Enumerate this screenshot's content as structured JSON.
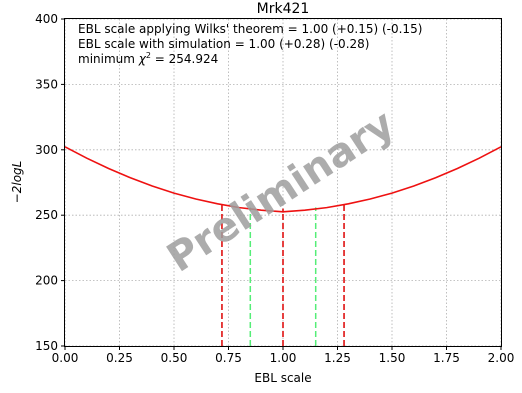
{
  "chart_data": {
    "type": "line",
    "title": "Mrk421",
    "xlabel": "EBL scale",
    "ylabel": "−2logL",
    "xlim": [
      0.0,
      2.0
    ],
    "ylim": [
      150,
      400
    ],
    "xticks": [
      0.0,
      0.25,
      0.5,
      0.75,
      1.0,
      1.25,
      1.5,
      1.75,
      2.0
    ],
    "xtick_labels": [
      "0.00",
      "0.25",
      "0.50",
      "0.75",
      "1.00",
      "1.25",
      "1.50",
      "1.75",
      "2.00"
    ],
    "yticks": [
      150,
      200,
      250,
      300,
      350,
      400
    ],
    "ytick_labels": [
      "150",
      "200",
      "250",
      "300",
      "350",
      "400"
    ],
    "grid": true,
    "series": [
      {
        "color": "#ee1111",
        "x": [
          0.0,
          0.1,
          0.2,
          0.3,
          0.4,
          0.5,
          0.6,
          0.7,
          0.8,
          0.9,
          1.0,
          1.1,
          1.2,
          1.3,
          1.4,
          1.5,
          1.6,
          1.7,
          1.8,
          1.9,
          2.0
        ],
        "y": [
          302.3,
          293.6,
          285.7,
          278.6,
          272.3,
          266.9,
          262.4,
          258.7,
          255.8,
          253.8,
          252.6,
          253.8,
          255.8,
          258.7,
          262.4,
          266.9,
          272.3,
          278.6,
          285.7,
          293.6,
          302.3
        ]
      }
    ],
    "vertical_lines": [
      {
        "x": 0.72,
        "y_top": 258.5,
        "style": "dashed",
        "color": "#dd0000"
      },
      {
        "x": 1.0,
        "y_top": 255.0,
        "style": "dashed",
        "color": "#dd0000"
      },
      {
        "x": 1.28,
        "y_top": 258.5,
        "style": "dashed",
        "color": "#dd0000"
      },
      {
        "x": 0.85,
        "y_top": 256.0,
        "style": "dashed",
        "color": "#55ee77"
      },
      {
        "x": 1.15,
        "y_top": 256.0,
        "style": "dashed",
        "color": "#55ee77"
      }
    ],
    "annotations": [
      "EBL scale applying Wilks' theorem = 1.00 (+0.15) (-0.15)",
      "EBL scale with simulation = 1.00 (+0.28) (-0.28)"
    ],
    "min_chi2": {
      "prefix": "minimum ",
      "symbol": "χ",
      "superscript": "2",
      "value_text": " = 254.924"
    },
    "watermark": "Preliminary",
    "colors": {
      "curve": "#ee1111",
      "wilks_lines": "#55ee77",
      "sim_lines": "#dd0000",
      "grid": "#b0b0b0",
      "watermark": "#9e9e9e"
    }
  }
}
